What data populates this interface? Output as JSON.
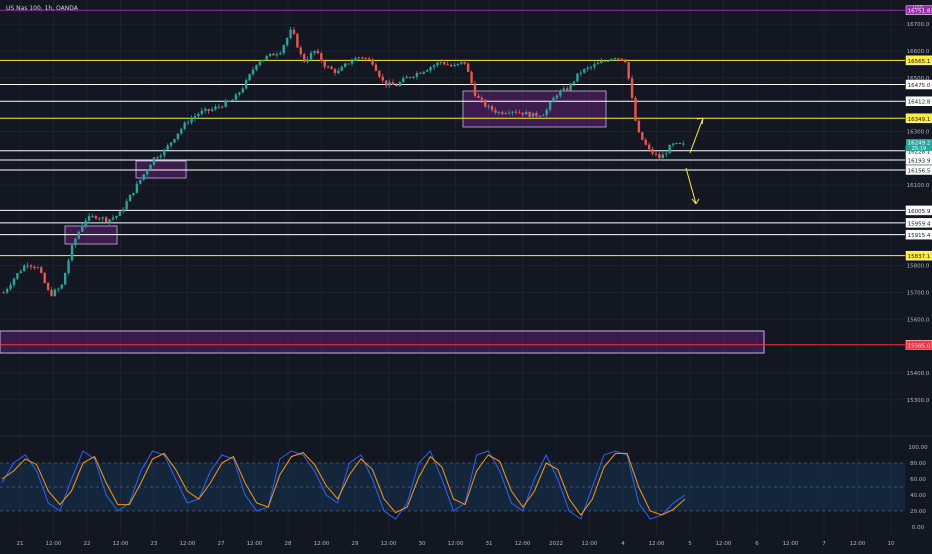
{
  "header": {
    "symbol_title": "US Nas 100, 1h, OANDA"
  },
  "price_axis": {
    "currency": "USD",
    "ticks": [
      "16700.0",
      "16600.0",
      "16500.0",
      "16300.0",
      "16100.0",
      "15800.0",
      "15700.0",
      "15600.0",
      "15400.0",
      "15300.0"
    ],
    "tick_values": [
      16700,
      16600,
      16500,
      16300,
      16100,
      15800,
      15700,
      15600,
      15400,
      15300
    ]
  },
  "time_axis": {
    "labels": [
      "21",
      "12:00",
      "22",
      "12:00",
      "23",
      "12:00",
      "27",
      "12:00",
      "28",
      "12:00",
      "29",
      "12:00",
      "30",
      "12:00",
      "31",
      "12:00",
      "2022",
      "12:00",
      "4",
      "12:00",
      "5",
      "12:00",
      "6",
      "12:00",
      "7",
      "12:00",
      "10"
    ]
  },
  "levels": [
    {
      "label": "16751.8",
      "price": 16751.8,
      "color": "#9c27b0"
    },
    {
      "label": "16565.1",
      "price": 16565.1,
      "color": "#ffeb3b"
    },
    {
      "label": "16475.0",
      "price": 16475.0,
      "color": "#ffffff"
    },
    {
      "label": "16412.8",
      "price": 16412.8,
      "color": "#ffffff"
    },
    {
      "label": "16349.1",
      "price": 16349.1,
      "color": "#ffeb3b"
    },
    {
      "label": "16228.1",
      "price": 16228.1,
      "color": "#ffffff"
    },
    {
      "label": "16193.9",
      "price": 16193.9,
      "color": "#ffffff"
    },
    {
      "label": "16156.5",
      "price": 16156.5,
      "color": "#ffffff"
    },
    {
      "label": "16005.9",
      "price": 16005.9,
      "color": "#ffffff"
    },
    {
      "label": "15959.4",
      "price": 15959.4,
      "color": "#ffffff"
    },
    {
      "label": "15915.4",
      "price": 15915.4,
      "color": "#ffffff"
    },
    {
      "label": "15837.1",
      "price": 15837.1,
      "color": "#ffeb3b"
    },
    {
      "label": "15505.0",
      "price": 15505.0,
      "color": "#f23645"
    }
  ],
  "current_price": {
    "label": "16249.2",
    "countdown": "25:19"
  },
  "oscillator": {
    "ticks": [
      "100.00",
      "80.00",
      "60.00",
      "40.00",
      "20.00",
      "0.00"
    ],
    "tick_values": [
      100,
      80,
      60,
      40,
      20,
      0
    ],
    "upper_band": 80,
    "lower_band": 20
  },
  "chart_data": {
    "type": "candlestick",
    "title": "US Nas 100, 1h, OANDA",
    "ylim": [
      15180,
      16790
    ],
    "price_path": [
      15700,
      15760,
      15810,
      15790,
      15690,
      15720,
      15880,
      15970,
      15985,
      15970,
      15990,
      16060,
      16130,
      16200,
      16230,
      16290,
      16340,
      16370,
      16380,
      16400,
      16420,
      16480,
      16560,
      16580,
      16600,
      16680,
      16560,
      16600,
      16540,
      16520,
      16560,
      16580,
      16560,
      16480,
      16470,
      16500,
      16520,
      16540,
      16560,
      16540,
      16560,
      16430,
      16390,
      16370,
      16380,
      16370,
      16360,
      16370,
      16440,
      16460,
      16520,
      16540,
      16560,
      16580,
      16565,
      16300,
      16230,
      16200,
      16250,
      16249
    ],
    "oscillator_k": [
      55,
      80,
      90,
      70,
      30,
      20,
      60,
      95,
      85,
      40,
      20,
      30,
      70,
      95,
      90,
      60,
      30,
      35,
      70,
      90,
      85,
      40,
      20,
      25,
      85,
      95,
      90,
      70,
      40,
      30,
      80,
      90,
      60,
      20,
      10,
      30,
      80,
      95,
      60,
      20,
      30,
      90,
      95,
      70,
      30,
      20,
      60,
      90,
      60,
      20,
      10,
      50,
      90,
      95,
      90,
      30,
      10,
      15,
      30,
      40
    ],
    "oscillator_d": [
      60,
      70,
      85,
      78,
      45,
      28,
      45,
      80,
      88,
      55,
      28,
      28,
      55,
      85,
      92,
      72,
      45,
      35,
      55,
      80,
      88,
      55,
      30,
      25,
      65,
      88,
      93,
      78,
      52,
      35,
      65,
      85,
      72,
      35,
      18,
      25,
      62,
      88,
      75,
      35,
      28,
      70,
      90,
      82,
      45,
      25,
      45,
      80,
      72,
      35,
      15,
      35,
      75,
      92,
      92,
      50,
      20,
      15,
      22,
      35
    ],
    "annotations": {
      "arrow_up_target": 16350,
      "arrow_down_target": 16030
    }
  }
}
